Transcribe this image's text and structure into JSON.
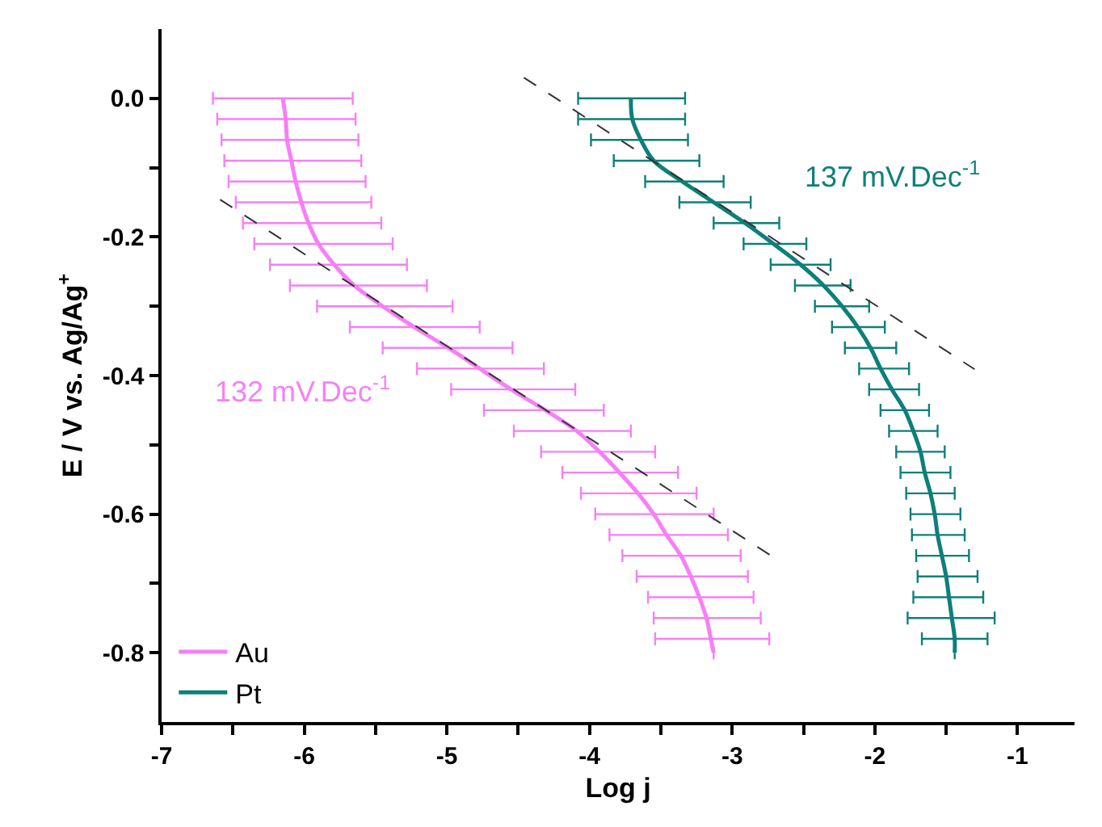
{
  "chart_data": {
    "type": "line",
    "xlabel": "Log j",
    "ylabel": "E / V vs. Ag/Ag$^{+}$",
    "xlim": [
      -7,
      -0.6
    ],
    "ylim": [
      -0.9,
      0.1
    ],
    "xticks": [
      -7,
      {
        "value": -6.5,
        "label": null
      },
      -6,
      {
        "value": -5.5,
        "label": null
      },
      -5,
      {
        "value": -4.5,
        "label": null
      },
      -4,
      {
        "value": -3.5,
        "label": null
      },
      -3,
      {
        "value": -2.5,
        "label": null
      },
      -2,
      {
        "value": -1.5,
        "label": null
      },
      -1
    ],
    "yticks": [
      {
        "value": 0,
        "label": "0.0"
      },
      {
        "value": -0.1,
        "label": null
      },
      -0.2,
      {
        "value": -0.3,
        "label": null
      },
      -0.4,
      {
        "value": -0.5,
        "label": null
      },
      -0.6,
      {
        "value": -0.7,
        "label": null
      },
      -0.8
    ],
    "grid": false,
    "legend": "bottom left",
    "marker": "none",
    "line_style": "solid",
    "series": [
      {
        "name": "Au",
        "color": "#f77ff7",
        "x": [
          -6.15,
          -6.13,
          -6.12,
          -6.09,
          -6.06,
          -6.02,
          -5.97,
          -5.9,
          -5.79,
          -5.65,
          -5.45,
          -5.23,
          -4.99,
          -4.77,
          -4.55,
          -4.31,
          -4.09,
          -3.93,
          -3.79,
          -3.66,
          -3.55,
          -3.46,
          -3.36,
          -3.29,
          -3.23,
          -3.18,
          -3.15,
          -3.13
        ],
        "values": [
          0,
          -0.03,
          -0.06,
          -0.09,
          -0.12,
          -0.15,
          -0.18,
          -0.21,
          -0.24,
          -0.27,
          -0.3,
          -0.33,
          -0.36,
          -0.39,
          -0.42,
          -0.45,
          -0.48,
          -0.51,
          -0.54,
          -0.57,
          -0.6,
          -0.63,
          -0.66,
          -0.69,
          -0.72,
          -0.75,
          -0.78,
          -0.8
        ],
        "xerrors": [
          [
            -6.64,
            -5.66
          ],
          [
            -6.61,
            -5.64
          ],
          [
            -6.58,
            -5.62
          ],
          [
            -6.56,
            -5.6
          ],
          [
            -6.53,
            -5.57
          ],
          [
            -6.48,
            -5.53
          ],
          [
            -6.43,
            -5.46
          ],
          [
            -6.35,
            -5.38
          ],
          [
            -6.24,
            -5.28
          ],
          [
            -6.1,
            -5.14
          ],
          [
            -5.91,
            -4.96
          ],
          [
            -5.68,
            -4.77
          ],
          [
            -5.45,
            -4.54
          ],
          [
            -5.21,
            -4.32
          ],
          [
            -4.97,
            -4.1
          ],
          [
            -4.74,
            -3.9
          ],
          [
            -4.53,
            -3.71
          ],
          [
            -4.34,
            -3.54
          ],
          [
            -4.19,
            -3.38
          ],
          [
            -4.06,
            -3.25
          ],
          [
            -3.96,
            -3.13
          ],
          [
            -3.86,
            -3.03
          ],
          [
            -3.77,
            -2.94
          ],
          [
            -3.67,
            -2.89
          ],
          [
            -3.59,
            -2.85
          ],
          [
            -3.55,
            -2.8
          ],
          [
            -3.54,
            -2.74
          ],
          null
        ]
      },
      {
        "name": "Pt",
        "color": "#0e7f7a",
        "x": [
          -3.71,
          -3.7,
          -3.64,
          -3.55,
          -3.35,
          -3.13,
          -2.91,
          -2.71,
          -2.52,
          -2.36,
          -2.23,
          -2.12,
          -2.03,
          -1.96,
          -1.88,
          -1.79,
          -1.73,
          -1.68,
          -1.65,
          -1.61,
          -1.58,
          -1.56,
          -1.53,
          -1.5,
          -1.48,
          -1.46,
          -1.44,
          -1.44
        ],
        "values": [
          0,
          -0.03,
          -0.06,
          -0.09,
          -0.12,
          -0.15,
          -0.18,
          -0.21,
          -0.24,
          -0.27,
          -0.3,
          -0.33,
          -0.36,
          -0.39,
          -0.42,
          -0.45,
          -0.48,
          -0.51,
          -0.54,
          -0.57,
          -0.6,
          -0.63,
          -0.66,
          -0.69,
          -0.72,
          -0.75,
          -0.78,
          -0.8
        ],
        "xerrors": [
          [
            -4.08,
            -3.33
          ],
          [
            -4.08,
            -3.33
          ],
          [
            -3.99,
            -3.31
          ],
          [
            -3.83,
            -3.23
          ],
          [
            -3.61,
            -3.06
          ],
          [
            -3.37,
            -2.87
          ],
          [
            -3.13,
            -2.67
          ],
          [
            -2.92,
            -2.48
          ],
          [
            -2.73,
            -2.31
          ],
          [
            -2.56,
            -2.17
          ],
          [
            -2.42,
            -2.04
          ],
          [
            -2.3,
            -1.93
          ],
          [
            -2.21,
            -1.85
          ],
          [
            -2.11,
            -1.76
          ],
          [
            -2.04,
            -1.69
          ],
          [
            -1.96,
            -1.62
          ],
          [
            -1.9,
            -1.56
          ],
          [
            -1.85,
            -1.51
          ],
          [
            -1.82,
            -1.47
          ],
          [
            -1.78,
            -1.44
          ],
          [
            -1.75,
            -1.4
          ],
          [
            -1.74,
            -1.37
          ],
          [
            -1.71,
            -1.34
          ],
          [
            -1.7,
            -1.28
          ],
          [
            -1.73,
            -1.24
          ],
          [
            -1.77,
            -1.16
          ],
          [
            -1.67,
            -1.21
          ],
          null
        ]
      },
      {
        "type": "line",
        "color": "#333333",
        "line_style": "dashed",
        "x": [
          -6.59,
          -2.72
        ],
        "values": [
          -0.146,
          -0.661
        ]
      },
      {
        "type": "line",
        "color": "#333333",
        "line_style": "dashed",
        "x": [
          -4.46,
          -1.3
        ],
        "values": [
          0.03,
          -0.391
        ]
      }
    ],
    "annotations": [
      "132 mV.Dec$^{-1}$",
      "137 mV.Dec$^{-1}$"
    ]
  }
}
